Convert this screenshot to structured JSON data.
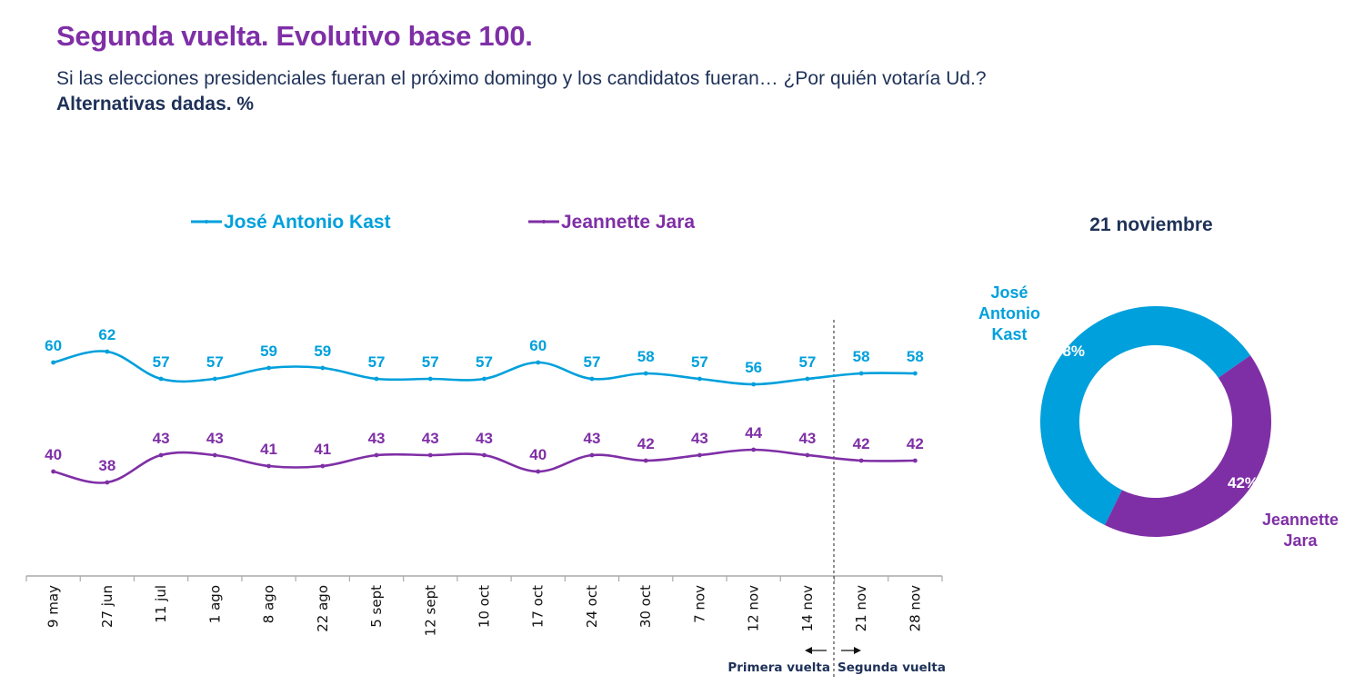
{
  "header": {
    "title": "Segunda vuelta. Evolutivo base 100.",
    "question": "Si las elecciones presidenciales fueran el próximo domingo y los candidatos fueran… ¿Por quién votaría Ud.?",
    "note": "Alternativas dadas. %"
  },
  "colors": {
    "kast": "#00a0dc",
    "jara": "#7f2fa6",
    "title": "#7f2fa6",
    "text_dark": "#1e3158",
    "axis": "#aaaaaa"
  },
  "chart_data": [
    {
      "type": "line",
      "title": "",
      "xlabel": "",
      "ylabel": "",
      "categories": [
        "9 may",
        "27 jun",
        "11 jul",
        "1 ago",
        "8 ago",
        "22 ago",
        "5 sept",
        "12 sept",
        "10 oct",
        "17 oct",
        "24 oct",
        "30 oct",
        "7 nov",
        "12 nov",
        "14 nov",
        "21 nov",
        "28 nov"
      ],
      "series": [
        {
          "name": "José Antonio Kast",
          "color": "#00a0dc",
          "values": [
            60,
            62,
            57,
            57,
            59,
            59,
            57,
            57,
            57,
            60,
            57,
            58,
            57,
            56,
            57,
            58,
            58
          ]
        },
        {
          "name": "Jeannette Jara",
          "color": "#7f2fa6",
          "values": [
            40,
            38,
            43,
            43,
            41,
            41,
            43,
            43,
            43,
            40,
            43,
            42,
            43,
            44,
            43,
            42,
            42
          ]
        }
      ],
      "legend_position": "top",
      "grid": false,
      "annotations": {
        "divider_after_category": "14 nov",
        "left_label": "Primera vuelta",
        "right_label": "Segunda vuelta"
      }
    },
    {
      "type": "pie",
      "variant": "donut",
      "title": "21 noviembre",
      "slices": [
        {
          "label": "José Antonio Kast",
          "label_lines": [
            "José",
            "Antonio",
            "Kast"
          ],
          "value": 58,
          "display": "58%",
          "color": "#00a0dc"
        },
        {
          "label": "Jeannette Jara",
          "label_lines": [
            "Jeannette",
            "Jara"
          ],
          "value": 42,
          "display": "42%",
          "color": "#7f2fa6"
        }
      ]
    }
  ]
}
